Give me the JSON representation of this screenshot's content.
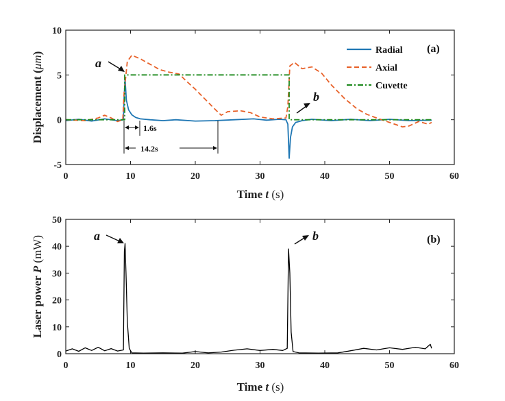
{
  "chart_data": [
    {
      "type": "line",
      "panel_label": "(a)",
      "xlabel_prefix": "Time ",
      "xlabel_var": "t",
      "xlabel_unit": " (s)",
      "ylabel_prefix": "Displacement (",
      "ylabel_unit": "μm",
      "ylabel_suffix": ")",
      "xlim": [
        0,
        60
      ],
      "ylim": [
        -5,
        10
      ],
      "xticks": [
        "0",
        "10",
        "20",
        "30",
        "40",
        "50",
        "60"
      ],
      "yticks": [
        "-5",
        "0",
        "5",
        "10"
      ],
      "legend_position": "top-right",
      "series": [
        {
          "name": "Radial",
          "color": "#1f77b4",
          "style": "solid",
          "points": [
            [
              0,
              -0.1
            ],
            [
              2,
              0.05
            ],
            [
              4,
              -0.15
            ],
            [
              6,
              0.1
            ],
            [
              8,
              -0.1
            ],
            [
              8.9,
              0
            ],
            [
              9.0,
              2.5
            ],
            [
              9.15,
              4.6
            ],
            [
              9.35,
              2.2
            ],
            [
              9.7,
              1.1
            ],
            [
              10.2,
              0.55
            ],
            [
              10.8,
              0.25
            ],
            [
              11.5,
              0.1
            ],
            [
              13,
              0
            ],
            [
              15,
              -0.1
            ],
            [
              17,
              0
            ],
            [
              20,
              -0.15
            ],
            [
              23,
              -0.1
            ],
            [
              26,
              0
            ],
            [
              29,
              0.1
            ],
            [
              31,
              -0.05
            ],
            [
              33,
              0.05
            ],
            [
              34,
              0
            ],
            [
              34.3,
              -0.5
            ],
            [
              34.5,
              -4.3
            ],
            [
              34.7,
              -2
            ],
            [
              35,
              -0.8
            ],
            [
              35.5,
              -0.3
            ],
            [
              36.5,
              -0.1
            ],
            [
              38,
              0.05
            ],
            [
              41,
              -0.1
            ],
            [
              44,
              0.05
            ],
            [
              47,
              -0.1
            ],
            [
              50,
              0.05
            ],
            [
              53,
              -0.1
            ],
            [
              56.5,
              -0.05
            ]
          ]
        },
        {
          "name": "Axial",
          "color": "#e8622a",
          "style": "dashed",
          "points": [
            [
              0,
              0
            ],
            [
              3,
              -0.1
            ],
            [
              5,
              0.2
            ],
            [
              6,
              0.5
            ],
            [
              7,
              0.2
            ],
            [
              8,
              -0.2
            ],
            [
              8.8,
              0
            ],
            [
              9,
              3
            ],
            [
              9.5,
              6.5
            ],
            [
              10.2,
              7.2
            ],
            [
              11.5,
              6.8
            ],
            [
              13,
              6.2
            ],
            [
              14.5,
              5.6
            ],
            [
              16,
              5.3
            ],
            [
              17.5,
              5.1
            ],
            [
              18.5,
              4.4
            ],
            [
              20,
              3.4
            ],
            [
              21.5,
              2.3
            ],
            [
              23,
              1.2
            ],
            [
              24,
              0.5
            ],
            [
              25,
              0.9
            ],
            [
              27,
              1
            ],
            [
              28.5,
              0.8
            ],
            [
              30,
              0.3
            ],
            [
              32,
              0.1
            ],
            [
              34,
              0.2
            ],
            [
              34.3,
              1.5
            ],
            [
              34.6,
              6
            ],
            [
              35.3,
              6.4
            ],
            [
              36.5,
              5.7
            ],
            [
              38,
              5.9
            ],
            [
              39.5,
              5.2
            ],
            [
              41,
              3.9
            ],
            [
              43,
              2.4
            ],
            [
              45,
              1.2
            ],
            [
              46.5,
              0.6
            ],
            [
              48,
              0.2
            ],
            [
              50,
              -0.3
            ],
            [
              52,
              -0.8
            ],
            [
              53,
              -0.7
            ],
            [
              54.5,
              -0.2
            ],
            [
              56,
              -0.5
            ],
            [
              56.5,
              -0.3
            ]
          ]
        },
        {
          "name": "Cuvette",
          "color": "#1f8a1f",
          "style": "dashdot",
          "points": [
            [
              0,
              0
            ],
            [
              9.1,
              0
            ],
            [
              9.1,
              5
            ],
            [
              34.5,
              5
            ],
            [
              34.5,
              0
            ],
            [
              56.5,
              0
            ]
          ]
        }
      ],
      "annotations": {
        "a": "a",
        "b": "b",
        "dt1": "1.6s",
        "dt2": "14.2s"
      }
    },
    {
      "type": "line",
      "panel_label": "(b)",
      "xlabel_prefix": "Time ",
      "xlabel_var": "t",
      "xlabel_unit": " (s)",
      "ylabel_prefix": "Laser power ",
      "ylabel_var": "P",
      "ylabel_unit": " (mW)",
      "xlim": [
        0,
        60
      ],
      "ylim": [
        0,
        50
      ],
      "xticks": [
        "0",
        "10",
        "20",
        "30",
        "40",
        "50",
        "60"
      ],
      "yticks": [
        "0",
        "10",
        "20",
        "30",
        "40",
        "50"
      ],
      "series": [
        {
          "color": "#000000",
          "style": "solid",
          "points": [
            [
              0,
              1
            ],
            [
              1,
              1.8
            ],
            [
              2,
              0.9
            ],
            [
              3,
              2.2
            ],
            [
              4,
              1.2
            ],
            [
              5,
              2.4
            ],
            [
              6,
              1.1
            ],
            [
              7,
              1.9
            ],
            [
              8,
              1
            ],
            [
              8.9,
              1.4
            ],
            [
              9.05,
              38
            ],
            [
              9.15,
              41
            ],
            [
              9.3,
              30
            ],
            [
              9.5,
              12
            ],
            [
              9.8,
              2
            ],
            [
              10.2,
              0.3
            ],
            [
              12,
              0.2
            ],
            [
              15,
              0.3
            ],
            [
              18,
              0.2
            ],
            [
              20,
              0.8
            ],
            [
              22,
              0.3
            ],
            [
              24,
              0.6
            ],
            [
              26,
              1.3
            ],
            [
              28,
              1.8
            ],
            [
              30,
              1.2
            ],
            [
              32,
              1.6
            ],
            [
              33.5,
              1.2
            ],
            [
              34.2,
              2
            ],
            [
              34.4,
              39
            ],
            [
              34.6,
              30
            ],
            [
              34.8,
              8
            ],
            [
              35.1,
              0.8
            ],
            [
              36,
              0.3
            ],
            [
              39,
              0.2
            ],
            [
              42,
              0.3
            ],
            [
              44,
              1.1
            ],
            [
              46,
              2
            ],
            [
              48,
              1.4
            ],
            [
              50,
              2.2
            ],
            [
              52,
              1.6
            ],
            [
              54,
              2.4
            ],
            [
              55.5,
              1.8
            ],
            [
              56.3,
              3.5
            ],
            [
              56.5,
              2
            ]
          ]
        }
      ],
      "annotations": {
        "a": "a",
        "b": "b"
      }
    }
  ]
}
